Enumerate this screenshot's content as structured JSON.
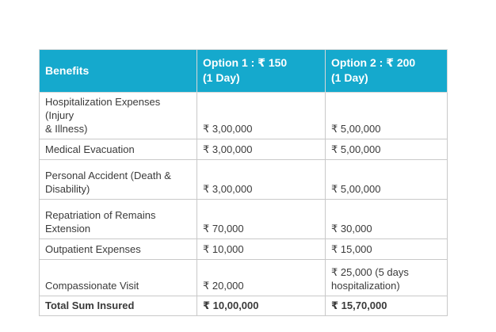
{
  "theme": {
    "header_bg": "#15a9cd",
    "header_text": "#ffffff",
    "border_color": "#c9c9c9",
    "body_text": "#3a3a3a",
    "page_bg": "#ffffff"
  },
  "table": {
    "columns": [
      {
        "label": "Benefits"
      },
      {
        "label": "Option 1 : ₹ 150\n(1 Day)"
      },
      {
        "label": "Option 2 : ₹ 200\n(1 Day)"
      }
    ],
    "rows": [
      {
        "benefit": "Hospitalization Expenses (Injury\n& Illness)",
        "option1": "₹ 3,00,000",
        "option2": "₹ 5,00,000"
      },
      {
        "benefit": "Medical Evacuation",
        "option1": "₹ 3,00,000",
        "option2": "₹ 5,00,000"
      },
      {
        "benefit": "Personal Accident (Death &\nDisability)",
        "option1": "₹ 3,00,000",
        "option2": "₹ 5,00,000"
      },
      {
        "benefit": "Repatriation of Remains\nExtension",
        "option1": "₹ 70,000",
        "option2": "₹ 30,000"
      },
      {
        "benefit": "Outpatient Expenses",
        "option1": "₹ 10,000",
        "option2": "₹ 15,000"
      },
      {
        "benefit": "Compassionate Visit",
        "option1": "₹ 20,000",
        "option2": "₹ 25,000 (5 days\nhospitalization)"
      },
      {
        "benefit": "Total Sum Insured",
        "option1": "₹ 10,00,000",
        "option2": "₹ 15,70,000"
      }
    ]
  }
}
